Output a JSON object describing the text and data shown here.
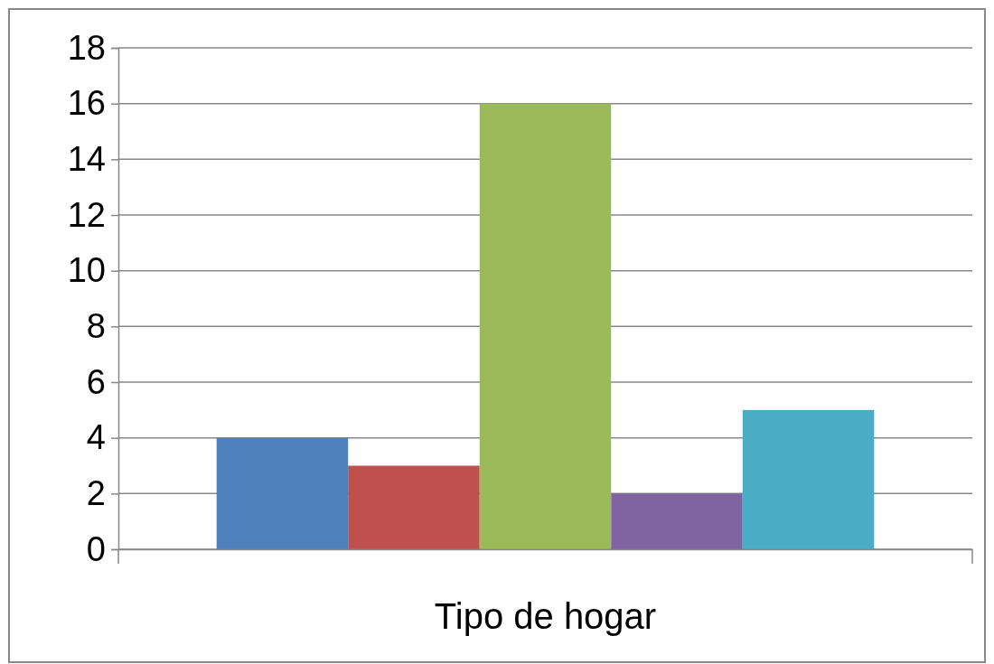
{
  "chart_data": {
    "type": "bar",
    "categories": [
      "Tipo de hogar"
    ],
    "series": [
      {
        "color": "#4f81bd",
        "values": [
          4
        ]
      },
      {
        "color": "#c0504d",
        "values": [
          3
        ]
      },
      {
        "color": "#9bbb59",
        "values": [
          16
        ]
      },
      {
        "color": "#8064a2",
        "values": [
          2
        ]
      },
      {
        "color": "#4bacc6",
        "values": [
          5
        ]
      }
    ],
    "ylim": [
      0,
      18
    ],
    "yticks": [
      0,
      2,
      4,
      6,
      8,
      10,
      12,
      14,
      16,
      18
    ],
    "grid": "y"
  }
}
